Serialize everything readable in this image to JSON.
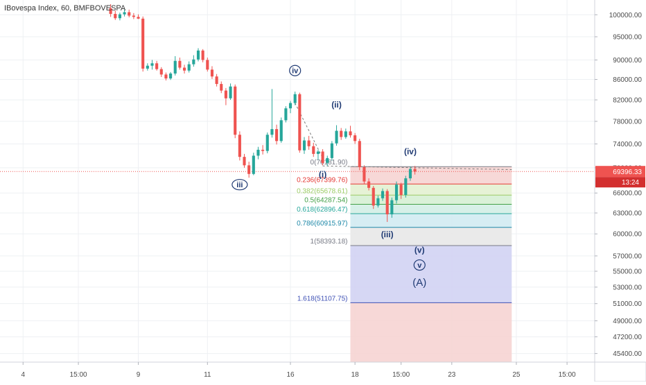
{
  "header": {
    "title": "IBovespa Index, 60, BMFBOVESPA"
  },
  "colors": {
    "up": "#26a69a",
    "down": "#ef5350",
    "grid": "#eef0f3",
    "axis_text": "#4a4a4a",
    "wave_label": "#1f3a73",
    "last_price_bg": "#ef5350",
    "countdown_bg": "#d32f2f"
  },
  "chart_data": {
    "type": "candlestick",
    "title": "IBovespa Index, 60, BMFBOVESPA",
    "y_axis": {
      "ticks": [
        "100000.00",
        "95000.00",
        "90000.00",
        "86000.00",
        "82000.00",
        "78000.00",
        "74000.00",
        "70000.00",
        "66000.00",
        "63000.00",
        "60000.00",
        "57000.00",
        "55000.00",
        "53000.00",
        "51000.00",
        "49000.00",
        "47200.00",
        "45400.00"
      ],
      "scale": "log",
      "range": [
        44500,
        103500
      ]
    },
    "x_axis": {
      "ticks": [
        {
          "label": "4",
          "t": 0
        },
        {
          "label": "15:00",
          "t": 12
        },
        {
          "label": "9",
          "t": 25
        },
        {
          "label": "11",
          "t": 40
        },
        {
          "label": "16",
          "t": 58
        },
        {
          "label": "18",
          "t": 72
        },
        {
          "label": "15:00",
          "t": 82
        },
        {
          "label": "23",
          "t": 93
        },
        {
          "label": "25",
          "t": 107
        },
        {
          "label": "15:00",
          "t": 118
        }
      ],
      "range": [
        -5,
        124
      ]
    },
    "candles": [
      {
        "t": 19,
        "o": 101500,
        "h": 102500,
        "l": 99500,
        "c": 100200
      },
      {
        "t": 20,
        "o": 100200,
        "h": 101000,
        "l": 98800,
        "c": 99200
      },
      {
        "t": 21,
        "o": 99200,
        "h": 100500,
        "l": 98700,
        "c": 100100
      },
      {
        "t": 22,
        "o": 100100,
        "h": 101200,
        "l": 99600,
        "c": 100600
      },
      {
        "t": 23,
        "o": 100600,
        "h": 101200,
        "l": 99400,
        "c": 99800
      },
      {
        "t": 24,
        "o": 99800,
        "h": 100400,
        "l": 99000,
        "c": 99500
      },
      {
        "t": 25,
        "o": 99500,
        "h": 100100,
        "l": 99000,
        "c": 99100
      },
      {
        "t": 26,
        "o": 99100,
        "h": 99600,
        "l": 87600,
        "c": 88200
      },
      {
        "t": 27,
        "o": 88200,
        "h": 89300,
        "l": 87800,
        "c": 88800
      },
      {
        "t": 28,
        "o": 88800,
        "h": 90000,
        "l": 88000,
        "c": 89300
      },
      {
        "t": 29,
        "o": 89300,
        "h": 89800,
        "l": 87800,
        "c": 88100
      },
      {
        "t": 30,
        "o": 88100,
        "h": 88500,
        "l": 86500,
        "c": 87000
      },
      {
        "t": 31,
        "o": 87000,
        "h": 87400,
        "l": 85800,
        "c": 86200
      },
      {
        "t": 32,
        "o": 86200,
        "h": 87500,
        "l": 85900,
        "c": 87200
      },
      {
        "t": 33,
        "o": 87200,
        "h": 90800,
        "l": 86800,
        "c": 89800
      },
      {
        "t": 34,
        "o": 89800,
        "h": 90500,
        "l": 88000,
        "c": 88400
      },
      {
        "t": 35,
        "o": 88400,
        "h": 89000,
        "l": 87200,
        "c": 87800
      },
      {
        "t": 36,
        "o": 87800,
        "h": 89700,
        "l": 87400,
        "c": 89100
      },
      {
        "t": 37,
        "o": 89100,
        "h": 91000,
        "l": 88600,
        "c": 90100
      },
      {
        "t": 38,
        "o": 90100,
        "h": 92500,
        "l": 89700,
        "c": 92000
      },
      {
        "t": 39,
        "o": 92000,
        "h": 92300,
        "l": 89500,
        "c": 90000
      },
      {
        "t": 40,
        "o": 90000,
        "h": 90500,
        "l": 87600,
        "c": 88000
      },
      {
        "t": 41,
        "o": 88000,
        "h": 88700,
        "l": 86100,
        "c": 86600
      },
      {
        "t": 42,
        "o": 86600,
        "h": 87100,
        "l": 84600,
        "c": 85100
      },
      {
        "t": 43,
        "o": 85100,
        "h": 85600,
        "l": 83300,
        "c": 83800
      },
      {
        "t": 44,
        "o": 83800,
        "h": 84300,
        "l": 81000,
        "c": 82300
      },
      {
        "t": 45,
        "o": 82300,
        "h": 85200,
        "l": 82000,
        "c": 84600
      },
      {
        "t": 46,
        "o": 84600,
        "h": 85000,
        "l": 75000,
        "c": 75600
      },
      {
        "t": 47,
        "o": 75600,
        "h": 76200,
        "l": 71200,
        "c": 71800
      },
      {
        "t": 48,
        "o": 71800,
        "h": 72300,
        "l": 70000,
        "c": 70400
      },
      {
        "t": 49,
        "o": 70400,
        "h": 71000,
        "l": 68400,
        "c": 69000
      },
      {
        "t": 50,
        "o": 69000,
        "h": 72500,
        "l": 68800,
        "c": 72000
      },
      {
        "t": 51,
        "o": 72000,
        "h": 73500,
        "l": 71400,
        "c": 73000
      },
      {
        "t": 52,
        "o": 73000,
        "h": 73800,
        "l": 72200,
        "c": 72800
      },
      {
        "t": 53,
        "o": 72800,
        "h": 76000,
        "l": 72400,
        "c": 75600
      },
      {
        "t": 54,
        "o": 75600,
        "h": 84100,
        "l": 75100,
        "c": 76600
      },
      {
        "t": 55,
        "o": 76600,
        "h": 77400,
        "l": 73900,
        "c": 74500
      },
      {
        "t": 56,
        "o": 74500,
        "h": 78700,
        "l": 74200,
        "c": 78200
      },
      {
        "t": 57,
        "o": 78200,
        "h": 80800,
        "l": 77800,
        "c": 80400
      },
      {
        "t": 58,
        "o": 80400,
        "h": 81800,
        "l": 79500,
        "c": 81400
      },
      {
        "t": 59,
        "o": 81400,
        "h": 83600,
        "l": 81000,
        "c": 83100
      },
      {
        "t": 60,
        "o": 83100,
        "h": 83400,
        "l": 72500,
        "c": 72900
      },
      {
        "t": 61,
        "o": 72900,
        "h": 75200,
        "l": 72300,
        "c": 74600
      },
      {
        "t": 62,
        "o": 74600,
        "h": 75400,
        "l": 73000,
        "c": 73600
      },
      {
        "t": 63,
        "o": 73600,
        "h": 74200,
        "l": 71800,
        "c": 72300
      },
      {
        "t": 64,
        "o": 72300,
        "h": 73000,
        "l": 71300,
        "c": 72700
      },
      {
        "t": 65,
        "o": 72700,
        "h": 73100,
        "l": 70400,
        "c": 70800
      },
      {
        "t": 66,
        "o": 70800,
        "h": 72000,
        "l": 70300,
        "c": 71600
      },
      {
        "t": 67,
        "o": 71600,
        "h": 74500,
        "l": 71200,
        "c": 74100
      },
      {
        "t": 68,
        "o": 74100,
        "h": 77300,
        "l": 73700,
        "c": 76300
      },
      {
        "t": 69,
        "o": 76300,
        "h": 76800,
        "l": 74700,
        "c": 75200
      },
      {
        "t": 70,
        "o": 75200,
        "h": 76700,
        "l": 74900,
        "c": 76200
      },
      {
        "t": 71,
        "o": 76200,
        "h": 77200,
        "l": 75100,
        "c": 75500
      },
      {
        "t": 72,
        "o": 75500,
        "h": 75900,
        "l": 74000,
        "c": 74500
      },
      {
        "t": 73,
        "o": 74500,
        "h": 74900,
        "l": 69600,
        "c": 70100
      },
      {
        "t": 74,
        "o": 70100,
        "h": 70400,
        "l": 67400,
        "c": 67800
      },
      {
        "t": 75,
        "o": 67800,
        "h": 68300,
        "l": 66400,
        "c": 66800
      },
      {
        "t": 76,
        "o": 66800,
        "h": 67100,
        "l": 63600,
        "c": 64100
      },
      {
        "t": 77,
        "o": 64100,
        "h": 65600,
        "l": 63800,
        "c": 65200
      },
      {
        "t": 78,
        "o": 65200,
        "h": 66700,
        "l": 64800,
        "c": 66300
      },
      {
        "t": 79,
        "o": 66300,
        "h": 66600,
        "l": 61700,
        "c": 62800
      },
      {
        "t": 80,
        "o": 62800,
        "h": 65300,
        "l": 62300,
        "c": 64900
      },
      {
        "t": 81,
        "o": 64900,
        "h": 67800,
        "l": 64400,
        "c": 67300
      },
      {
        "t": 82,
        "o": 67300,
        "h": 67600,
        "l": 65100,
        "c": 65700
      },
      {
        "t": 83,
        "o": 65700,
        "h": 68700,
        "l": 65300,
        "c": 68300
      },
      {
        "t": 84,
        "o": 68300,
        "h": 70200,
        "l": 67900,
        "c": 69800
      },
      {
        "t": 85,
        "o": 69800,
        "h": 70300,
        "l": 68900,
        "c": 69396
      }
    ],
    "last_price": {
      "value": 69396.33,
      "label": "69396.33",
      "countdown": "13:24"
    },
    "fibonacci": {
      "t_start": 71,
      "t_end": 106,
      "levels": [
        {
          "label": "0(70181.90)",
          "price": 70181.9,
          "color": "#787b86",
          "fill": "#f6d4d3"
        },
        {
          "label": "0.236(67399.76)",
          "price": 67399.76,
          "color": "#e53935",
          "fill": "#e3f1d2"
        },
        {
          "label": "0.382(65678.61)",
          "price": 65678.61,
          "color": "#9ccc65",
          "fill": "#d6efd4"
        },
        {
          "label": "0.5(64287.54)",
          "price": 64287.54,
          "color": "#43a047",
          "fill": "#d3eee5"
        },
        {
          "label": "0.618(62896.47)",
          "price": 62896.47,
          "color": "#26a69a",
          "fill": "#d2ebf2"
        },
        {
          "label": "0.786(60915.97)",
          "price": 60915.97,
          "color": "#1e88a8",
          "fill": "#e8e8e8"
        },
        {
          "label": "1(58393.18)",
          "price": 58393.18,
          "color": "#787b86",
          "fill": "#d2d3f3"
        },
        {
          "label": "1.618(51107.75)",
          "price": 51107.75,
          "color": "#3f51b5",
          "fill": "#f6d4d3"
        }
      ],
      "bottom_price": 44500
    },
    "wave_labels": [
      {
        "text": "iv",
        "t": 59,
        "price": 87800,
        "circled": true
      },
      {
        "text": "iii",
        "t": 47,
        "price": 67300,
        "circled": true
      },
      {
        "text": "(ii)",
        "t": 68,
        "price": 81100,
        "circled": false
      },
      {
        "text": "(i)",
        "t": 65,
        "price": 68900,
        "circled": false
      },
      {
        "text": "(iv)",
        "t": 84,
        "price": 72700,
        "circled": false
      },
      {
        "text": "(iii)",
        "t": 79,
        "price": 59900,
        "circled": false
      },
      {
        "text": "(v)",
        "t": 86,
        "price": 57800,
        "circled": false
      },
      {
        "text": "v",
        "t": 86,
        "price": 55800,
        "circled": true
      },
      {
        "text": "(A)",
        "t": 86,
        "price": 53500,
        "circled": false
      }
    ],
    "trend_lines": [
      {
        "t1": 59,
        "p1": 81400,
        "t2": 65,
        "p2": 71600
      },
      {
        "t1": 65,
        "p1": 70300,
        "t2": 106,
        "p2": 69700
      }
    ],
    "grid": true
  }
}
